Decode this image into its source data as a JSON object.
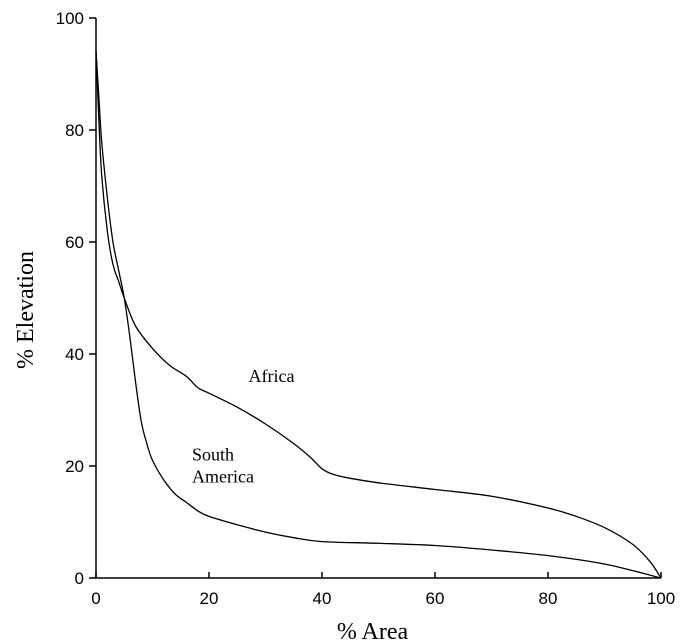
{
  "chart_data": {
    "type": "line",
    "title": "",
    "xlabel": "%   Area",
    "ylabel": "%   Elevation",
    "xlim": [
      0,
      100
    ],
    "ylim": [
      0,
      100
    ],
    "xticks": [
      0,
      20,
      40,
      60,
      80,
      100
    ],
    "yticks": [
      0,
      20,
      40,
      60,
      80,
      100
    ],
    "grid": false,
    "legend": "none",
    "series": [
      {
        "label_lines": [
          "Africa"
        ],
        "x": [
          0,
          0.5,
          1,
          2,
          3,
          4,
          5,
          7,
          10,
          13,
          16,
          18,
          20,
          25,
          30,
          35,
          38,
          40,
          42,
          45,
          50,
          60,
          70,
          80,
          85,
          90,
          95,
          98,
          100
        ],
        "y": [
          94,
          82,
          72,
          62,
          56,
          53,
          50,
          45,
          41,
          38,
          36,
          34,
          33,
          30.5,
          27.5,
          24,
          21.5,
          19.5,
          18.5,
          17.8,
          17,
          15.8,
          14.6,
          12.5,
          11,
          9,
          6,
          3,
          0
        ]
      },
      {
        "label_lines": [
          "South",
          "America"
        ],
        "x": [
          0,
          0.5,
          1,
          2,
          3,
          4,
          5,
          6,
          7,
          8,
          9,
          10,
          12,
          14,
          16,
          18,
          20,
          25,
          30,
          35,
          40,
          50,
          60,
          70,
          80,
          90,
          100
        ],
        "y": [
          94,
          86,
          78,
          68,
          60,
          55,
          50,
          43,
          35,
          28,
          24,
          21,
          17.5,
          15,
          13.5,
          12,
          11,
          9.5,
          8.2,
          7.2,
          6.5,
          6.2,
          5.8,
          5,
          4,
          2.5,
          0
        ]
      }
    ],
    "annotations": [
      {
        "lines": [
          "Africa"
        ],
        "x": 27,
        "y": 35
      },
      {
        "lines": [
          "South",
          "America"
        ],
        "x": 17,
        "y": 21
      }
    ]
  }
}
